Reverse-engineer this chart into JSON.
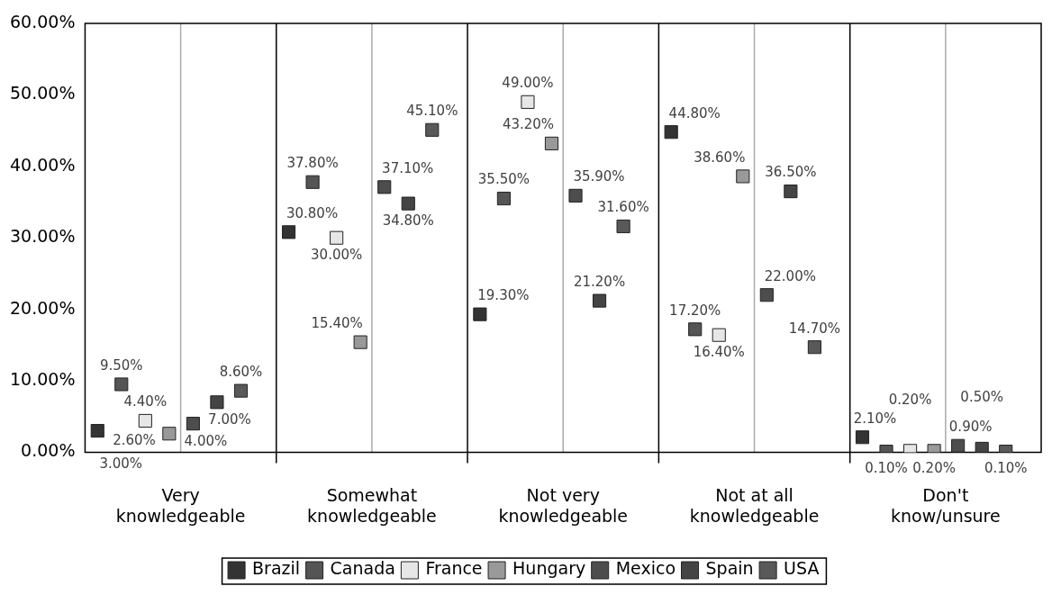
{
  "chart_data": {
    "type": "scatter",
    "categories": [
      "Very knowledgeable",
      "Somewhat knowledgeable",
      "Not very knowledgeable",
      "Not at all knowledgeable",
      "Don't know/unsure"
    ],
    "ylim": [
      0,
      60
    ],
    "yticks": [
      {
        "value": 0,
        "label": "0.00%"
      },
      {
        "value": 10,
        "label": "10.00%"
      },
      {
        "value": 20,
        "label": "20.00%"
      },
      {
        "value": 30,
        "label": "30.00%"
      },
      {
        "value": 40,
        "label": "40.00%"
      },
      {
        "value": 50,
        "label": "50.00%"
      },
      {
        "value": 60,
        "label": "60.00%"
      }
    ],
    "grid": "x",
    "legend": "bottom",
    "marker": "square",
    "series": [
      {
        "name": "Brazil",
        "color": "#333333",
        "values": [
          3.0,
          30.8,
          19.3,
          44.8,
          2.1
        ],
        "value_labels": [
          "3.00%",
          "30.80%",
          "19.30%",
          "44.80%",
          "2.10%"
        ]
      },
      {
        "name": "Canada",
        "color": "#555555",
        "values": [
          9.5,
          37.8,
          35.5,
          17.2,
          0.1
        ],
        "value_labels": [
          "9.50%",
          "37.80%",
          "35.50%",
          "17.20%",
          "0.10%"
        ]
      },
      {
        "name": "France",
        "color": "#e6e6e6",
        "values": [
          4.4,
          30.0,
          49.0,
          16.4,
          0.2
        ],
        "value_labels": [
          "4.40%",
          "30.00%",
          "49.00%",
          "16.40%",
          "0.20%"
        ]
      },
      {
        "name": "Hungary",
        "color": "#999999",
        "values": [
          2.6,
          15.4,
          43.2,
          38.6,
          0.2
        ],
        "value_labels": [
          "2.60%",
          "15.40%",
          "43.20%",
          "38.60%",
          "0.20%"
        ]
      },
      {
        "name": "Mexico",
        "color": "#4d4d4d",
        "values": [
          4.0,
          37.1,
          35.9,
          22.0,
          0.9
        ],
        "value_labels": [
          "4.00%",
          "37.10%",
          "35.90%",
          "22.00%",
          "0.90%"
        ]
      },
      {
        "name": "Spain",
        "color": "#444444",
        "values": [
          7.0,
          34.8,
          21.2,
          36.5,
          0.5
        ],
        "value_labels": [
          "7.00%",
          "34.80%",
          "21.20%",
          "36.50%",
          "0.50%"
        ]
      },
      {
        "name": "USA",
        "color": "#595959",
        "values": [
          8.6,
          45.1,
          31.6,
          14.7,
          0.1
        ],
        "value_labels": [
          "8.60%",
          "45.10%",
          "31.60%",
          "14.70%",
          "0.10%"
        ]
      }
    ]
  }
}
